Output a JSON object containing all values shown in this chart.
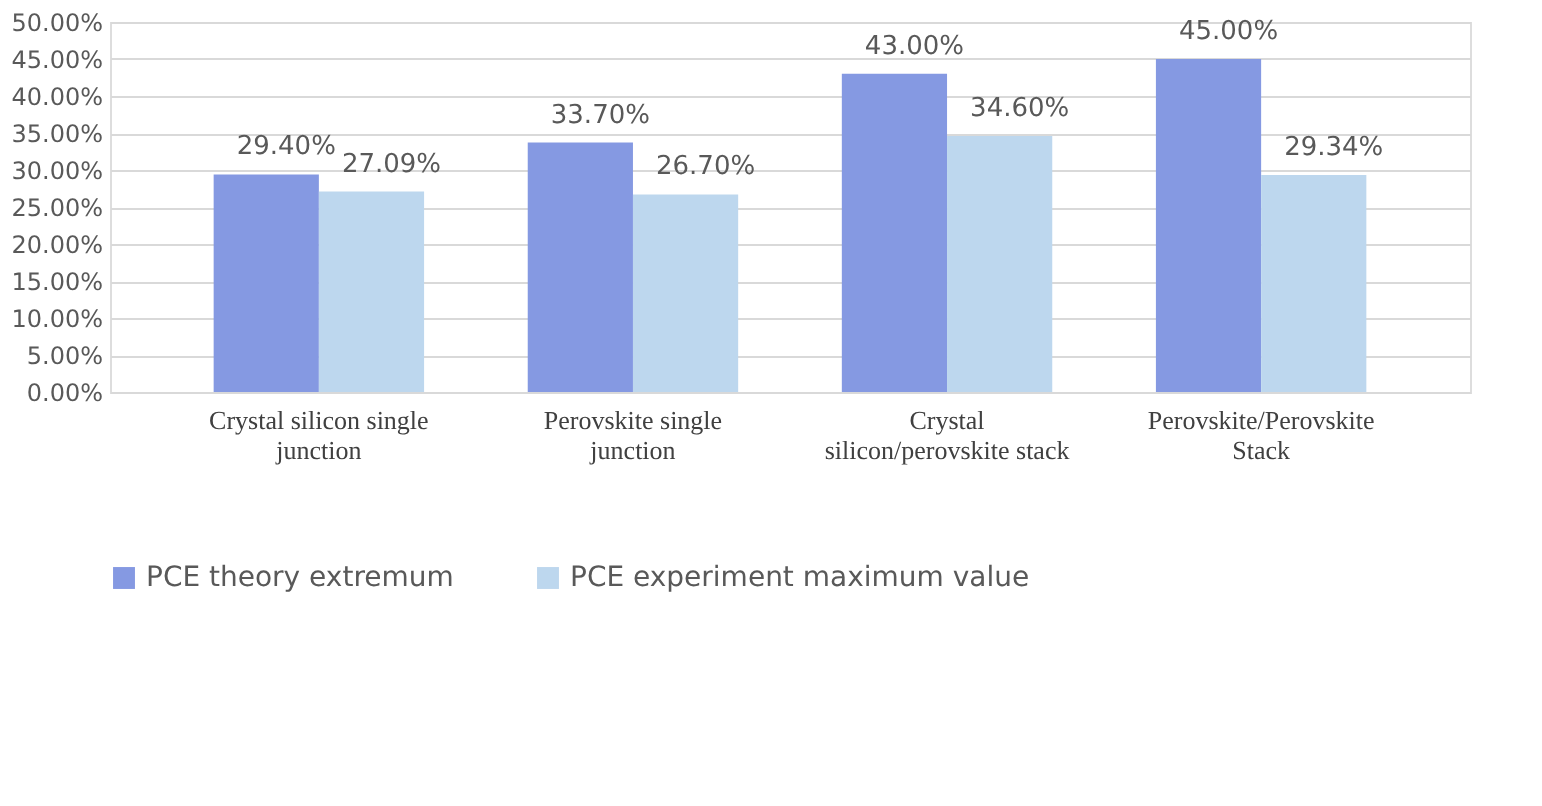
{
  "chart_data": {
    "type": "bar",
    "categories": [
      "Crystal silicon single junction",
      "Perovskite single junction",
      "Crystal silicon/perovskite stack",
      "Perovskite/Perovskite Stack"
    ],
    "series": [
      {
        "name": "PCE theory extremum",
        "color": "#8599e2",
        "values": [
          29.4,
          33.7,
          43.0,
          45.0
        ],
        "value_labels": [
          "29.40%",
          "33.70%",
          "43.00%",
          "45.00%"
        ]
      },
      {
        "name": "PCE experiment maximum value",
        "color": "#bdd7ee",
        "values": [
          27.09,
          26.7,
          34.6,
          29.34
        ],
        "value_labels": [
          "27.09%",
          "26.70%",
          "34.60%",
          "29.34%"
        ]
      }
    ],
    "ylim": [
      0,
      50
    ],
    "yticks": [
      {
        "value": 0,
        "label": "0.00%"
      },
      {
        "value": 5,
        "label": "5.00%"
      },
      {
        "value": 10,
        "label": "10.00%"
      },
      {
        "value": 15,
        "label": "15.00%"
      },
      {
        "value": 20,
        "label": "20.00%"
      },
      {
        "value": 25,
        "label": "25.00%"
      },
      {
        "value": 30,
        "label": "30.00%"
      },
      {
        "value": 35,
        "label": "35.00%"
      },
      {
        "value": 40,
        "label": "40.00%"
      },
      {
        "value": 45,
        "label": "45.00%"
      },
      {
        "value": 50,
        "label": "50.00%"
      }
    ],
    "grid": "y",
    "legend": "bottom"
  }
}
